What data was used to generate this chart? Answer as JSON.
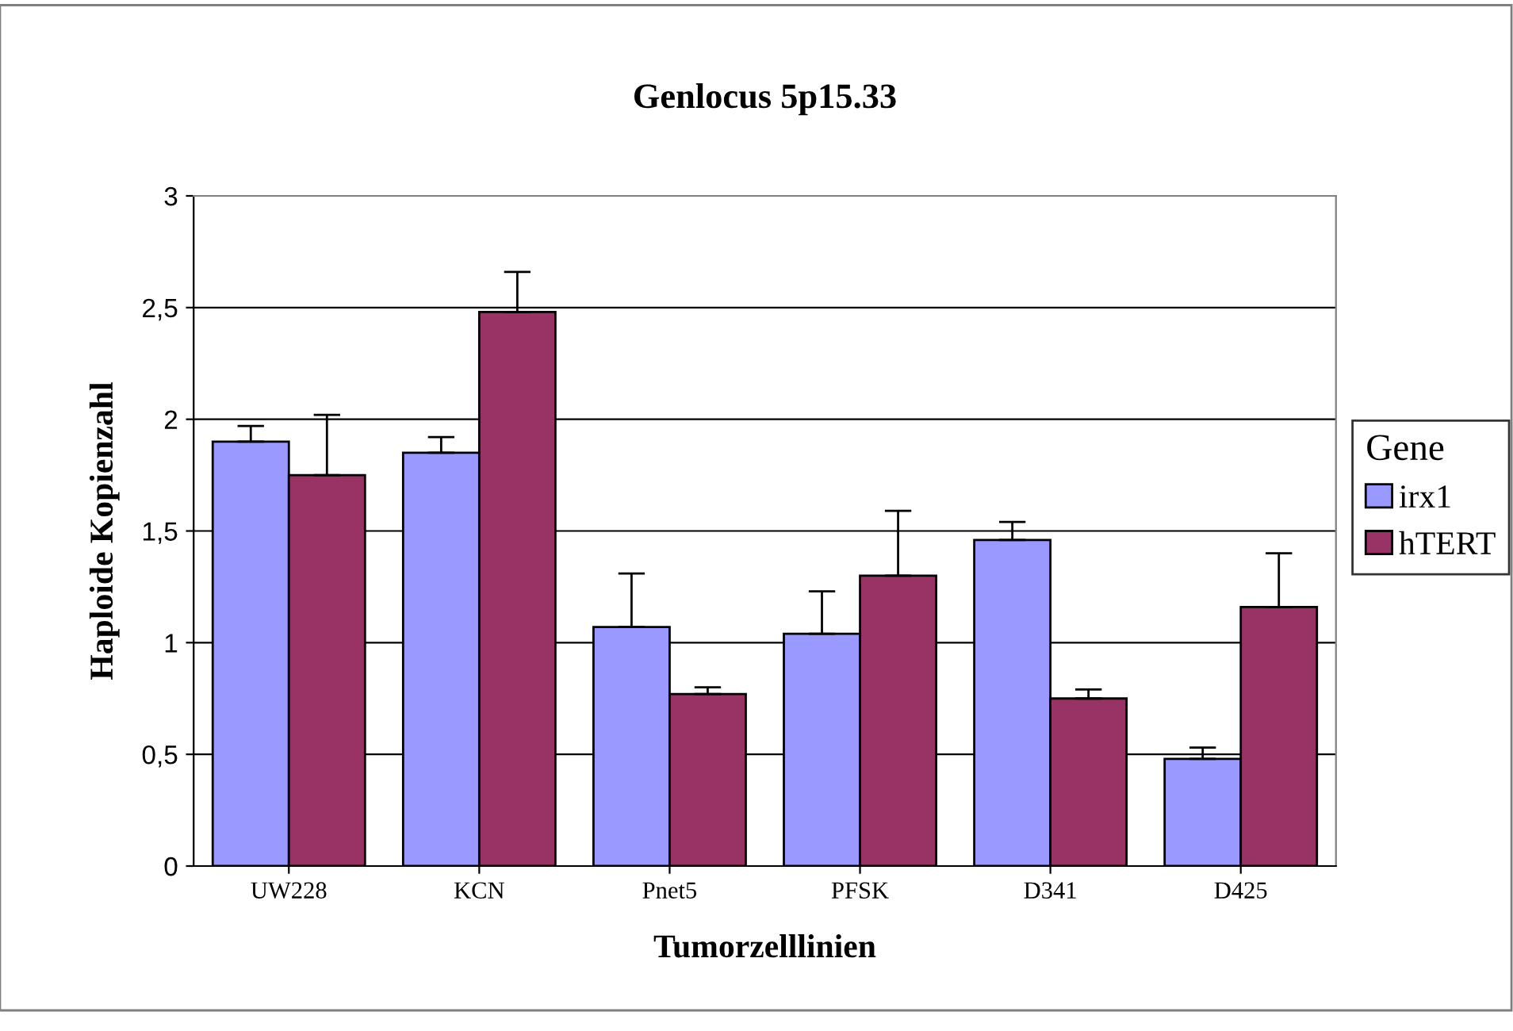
{
  "chart_data": {
    "type": "bar",
    "title": "Genlocus 5p15.33",
    "xlabel": "Tumorzelllinien",
    "ylabel": "Haploide Kopienzahl",
    "legend_title": "Gene",
    "categories": [
      "UW228",
      "KCN",
      "Pnet5",
      "PFSK",
      "D341",
      "D425"
    ],
    "series": [
      {
        "name": "irx1",
        "color": "#9999ff",
        "values": [
          1.9,
          1.85,
          1.07,
          1.04,
          1.46,
          0.48
        ],
        "errors": [
          [
            1.9,
            1.97
          ],
          [
            1.85,
            1.92
          ],
          [
            1.07,
            1.31
          ],
          [
            1.04,
            1.23
          ],
          [
            1.46,
            1.54
          ],
          [
            0.48,
            0.53
          ]
        ]
      },
      {
        "name": "hTERT",
        "color": "#993366",
        "values": [
          1.75,
          2.48,
          0.77,
          1.3,
          0.75,
          1.16
        ],
        "errors": [
          [
            1.75,
            2.02
          ],
          [
            2.48,
            2.66
          ],
          [
            0.77,
            0.8
          ],
          [
            1.3,
            1.59
          ],
          [
            0.75,
            0.79
          ],
          [
            1.16,
            1.4
          ]
        ]
      }
    ],
    "ylim": [
      0,
      3
    ],
    "yticks": [
      0,
      {
        "value": 0.5,
        "label": "0,5"
      },
      1,
      {
        "value": 1.5,
        "label": "1,5"
      },
      2,
      {
        "value": 2.5,
        "label": "2,5"
      },
      3
    ],
    "grid": "y",
    "legend": "right"
  }
}
